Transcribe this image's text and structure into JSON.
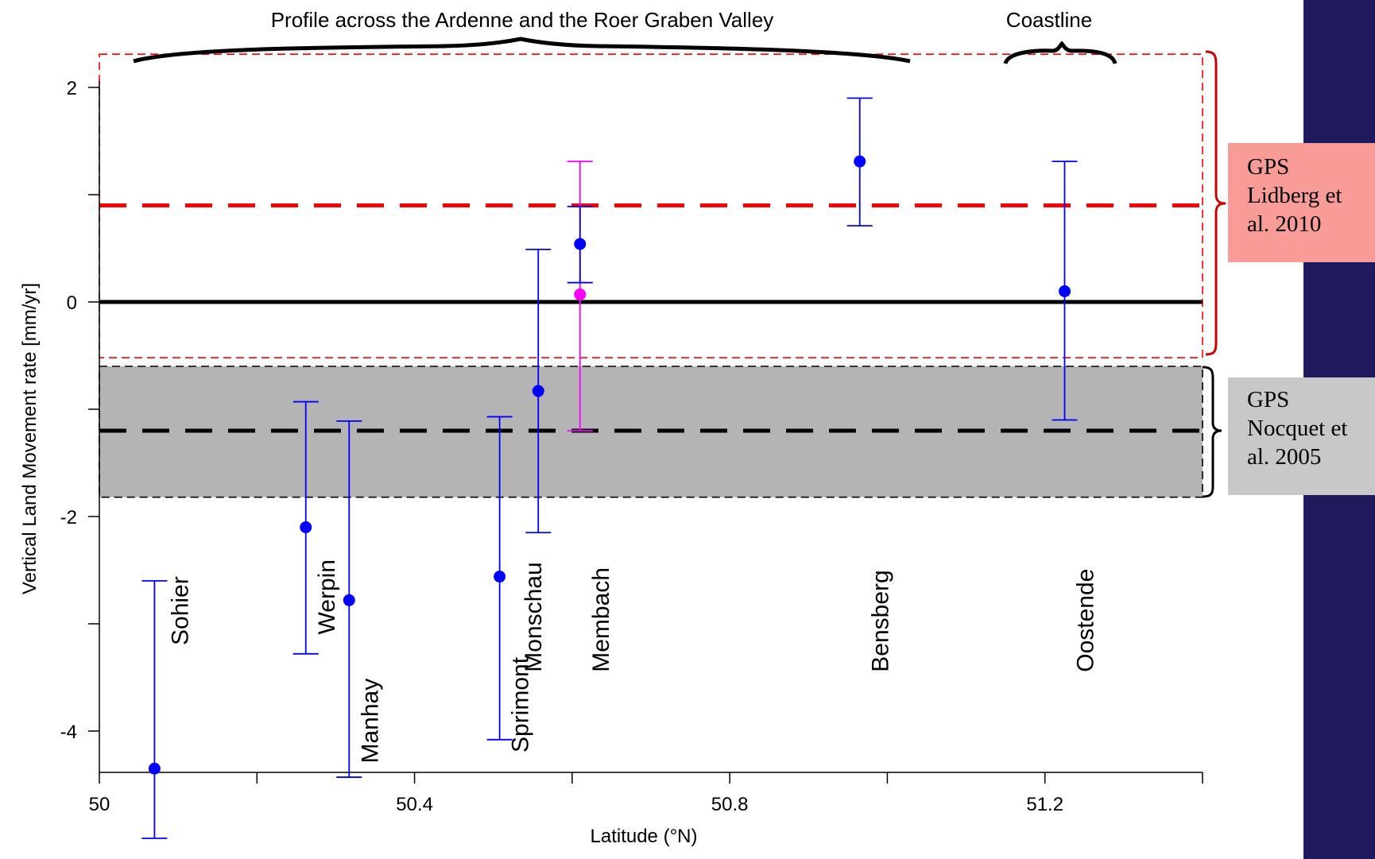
{
  "chart_data": {
    "type": "scatter",
    "title": "",
    "xlabel": "Latitude (°N)",
    "ylabel": "Vertical Land Movement rate [mm/yr]",
    "xlim": [
      50,
      51.4
    ],
    "ylim": [
      -4.35,
      2.3
    ],
    "x_ticks": [
      50,
      50.2,
      50.4,
      50.6,
      50.8,
      51.0,
      51.2,
      51.4
    ],
    "x_tick_labels": [
      "50",
      "",
      "50.4",
      "",
      "50.8",
      "",
      "51.2",
      ""
    ],
    "y_ticks": [
      -4,
      -3,
      -2,
      -1,
      0,
      1,
      2
    ],
    "y_tick_labels": [
      "-4",
      "",
      "-2",
      "",
      "0",
      "",
      "2"
    ],
    "grid": false,
    "stations": [
      {
        "name": "Sohier",
        "lat": 50.07,
        "value": -4.35,
        "err_low": -5.0,
        "err_high": -2.6,
        "label_y": -3.2
      },
      {
        "name": "Werpin",
        "lat": 50.262,
        "value": -2.1,
        "err_low": -3.28,
        "err_high": -0.93,
        "label_y": -3.1
      },
      {
        "name": "Manhay",
        "lat": 50.317,
        "value": -2.78,
        "err_low": -4.43,
        "err_high": -1.11,
        "label_y": -4.3
      },
      {
        "name": "Sprimont",
        "lat": 50.508,
        "value": -2.56,
        "err_low": -4.08,
        "err_high": -1.07,
        "label_y": -4.2
      },
      {
        "name": "Monschau",
        "lat": 50.557,
        "value": -0.83,
        "err_low": -2.15,
        "err_high": 0.49,
        "label_y": -3.45
      },
      {
        "name": "Membach",
        "lat": 50.61,
        "value": 0.54,
        "err_low": 0.18,
        "err_high": 0.89,
        "label_y": -3.45
      },
      {
        "name": "Bensberg",
        "lat": 50.965,
        "value": 1.31,
        "err_low": 0.71,
        "err_high": 1.9,
        "label_y": -3.45
      },
      {
        "name": "Oostende",
        "lat": 51.225,
        "value": 0.1,
        "err_low": -1.1,
        "err_high": 1.31,
        "label_y": -3.45
      }
    ],
    "secondary_point": {
      "lat": 50.61,
      "value": 0.07,
      "err_low": -1.2,
      "err_high": 1.31,
      "color": "#ff00ff"
    },
    "reference_lines": [
      {
        "value": 0,
        "style": "solid",
        "color": "#000000"
      },
      {
        "value": 0.9,
        "style": "dashed",
        "color": "#ff0000"
      },
      {
        "value": -1.2,
        "style": "dashed",
        "color": "#000000"
      }
    ],
    "bands": [
      {
        "y_low": -0.52,
        "y_high": 2.31,
        "fill": "none",
        "stroke": "#ff0000",
        "style": "dashed"
      },
      {
        "y_low": -1.82,
        "y_high": -0.6,
        "fill": "#b4b4b4",
        "stroke": "#000000",
        "style": "dashed"
      }
    ],
    "annotations": {
      "profile": "Profile across the Ardenne and the Roer Graben Valley",
      "coastline": "Coastline",
      "lidberg": [
        "GPS",
        "Lidberg et",
        "al. 2010"
      ],
      "nocquet": [
        "GPS",
        "Nocquet et",
        "al. 2005"
      ]
    },
    "colors": {
      "points": "#0000ff",
      "accent": "#ff0000",
      "band": "#b4b4b4",
      "side_band": "#1f1a5e"
    }
  }
}
